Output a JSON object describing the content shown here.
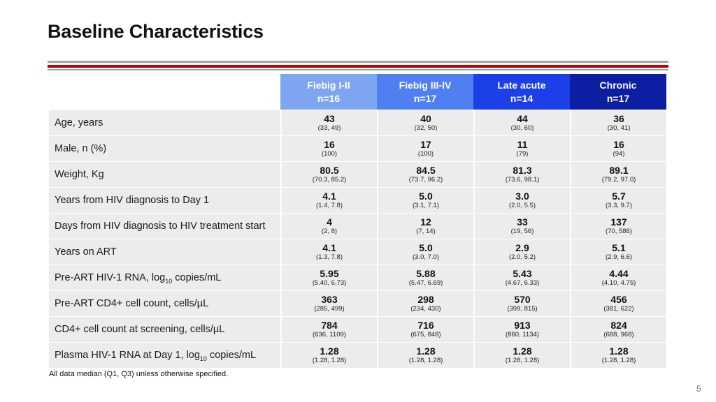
{
  "title": "Baseline Characteristics",
  "columns": [
    {
      "name": "Fiebig I-II",
      "n": "n=16",
      "color": "#7ea6f0"
    },
    {
      "name": "Fiebig III-IV",
      "n": "n=17",
      "color": "#4f7ff0"
    },
    {
      "name": "Late acute",
      "n": "n=14",
      "color": "#1c3fe8"
    },
    {
      "name": "Chronic",
      "n": "n=17",
      "color": "#0c1fa3"
    }
  ],
  "rows": [
    {
      "label": "Age, years",
      "cells": [
        {
          "v": "43",
          "r": "(33, 49)"
        },
        {
          "v": "40",
          "r": "(32, 50)"
        },
        {
          "v": "44",
          "r": "(30, 60)"
        },
        {
          "v": "36",
          "r": "(30, 41)"
        }
      ]
    },
    {
      "label": "Male, n (%)",
      "cells": [
        {
          "v": "16",
          "r": "(100)"
        },
        {
          "v": "17",
          "r": "(100)"
        },
        {
          "v": "11",
          "r": "(79)"
        },
        {
          "v": "16",
          "r": "(94)"
        }
      ]
    },
    {
      "label": "Weight, Kg",
      "cells": [
        {
          "v": "80.5",
          "r": "(70.3, 85.2)"
        },
        {
          "v": "84.5",
          "r": "(73.7, 96.2)"
        },
        {
          "v": "81.3",
          "r": "(73.6, 98.1)"
        },
        {
          "v": "89.1",
          "r": "(79.2, 97.0)"
        }
      ]
    },
    {
      "label": "Years from HIV diagnosis to Day 1",
      "cells": [
        {
          "v": "4.1",
          "r": "(1.4, 7.8)"
        },
        {
          "v": "5.0",
          "r": "(3.1, 7.1)"
        },
        {
          "v": "3.0",
          "r": "(2.0, 5.5)"
        },
        {
          "v": "5.7",
          "r": "(3.3, 9.7)"
        }
      ]
    },
    {
      "label": "Days from HIV diagnosis to HIV treatment start",
      "cells": [
        {
          "v": "4",
          "r": "(2, 8)"
        },
        {
          "v": "12",
          "r": "(7, 14)"
        },
        {
          "v": "33",
          "r": "(19, 56)"
        },
        {
          "v": "137",
          "r": "(70, 586)"
        }
      ]
    },
    {
      "label": "Years on ART",
      "cells": [
        {
          "v": "4.1",
          "r": "(1.3, 7.8)"
        },
        {
          "v": "5.0",
          "r": "(3.0, 7.0)"
        },
        {
          "v": "2.9",
          "r": "(2.0, 5.2)"
        },
        {
          "v": "5.1",
          "r": "(2.9, 6.6)"
        }
      ]
    },
    {
      "label_pre": "Pre-ART HIV-1 RNA, log",
      "label_sub": "10",
      "label_post": " copies/mL",
      "cells": [
        {
          "v": "5.95",
          "r": "(5.40, 6.73)"
        },
        {
          "v": "5.88",
          "r": "(5.47, 6.69)"
        },
        {
          "v": "5.43",
          "r": "(4.67, 6.33)"
        },
        {
          "v": "4.44",
          "r": "(4.10, 4.75)"
        }
      ]
    },
    {
      "label": "Pre-ART CD4+ cell count, cells/µL",
      "cells": [
        {
          "v": "363",
          "r": "(285, 499)"
        },
        {
          "v": "298",
          "r": "(234, 430)"
        },
        {
          "v": "570",
          "r": "(399, 815)"
        },
        {
          "v": "456",
          "r": "(381, 622)"
        }
      ]
    },
    {
      "label": "CD4+ cell count at screening, cells/µL",
      "cells": [
        {
          "v": "784",
          "r": "(636, 1109)"
        },
        {
          "v": "716",
          "r": "(675, 848)"
        },
        {
          "v": "913",
          "r": "(860, 1134)"
        },
        {
          "v": "824",
          "r": "(688, 968)"
        }
      ]
    },
    {
      "label_pre": "Plasma HIV-1 RNA at Day 1, log",
      "label_sub": "10",
      "label_post": " copies/mL",
      "cells": [
        {
          "v": "1.28",
          "r": "(1.28, 1.28)"
        },
        {
          "v": "1.28",
          "r": "(1.28, 1.28)"
        },
        {
          "v": "1.28",
          "r": "(1.28, 1.28)"
        },
        {
          "v": "1.28",
          "r": "(1.28, 1.28)"
        }
      ]
    }
  ],
  "footnote": "All data median (Q1, Q3) unless otherwise specified.",
  "page_number": "5",
  "accent_color": "#c00000"
}
